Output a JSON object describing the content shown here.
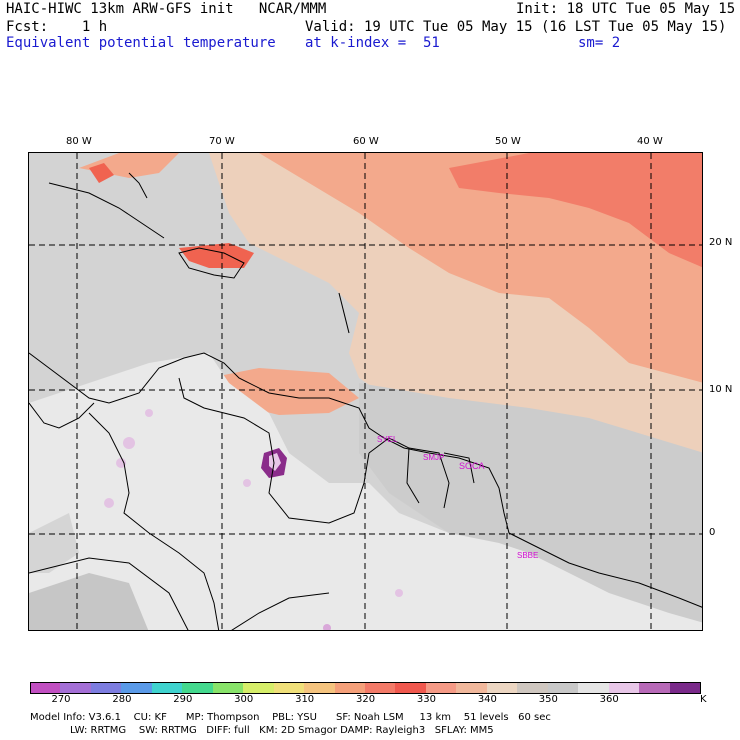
{
  "header": {
    "line1_left": "HAIC-HIWC 13km ARW-GFS init   NCAR/MMM",
    "line1_right": "Init: 18 UTC Tue 05 May 15",
    "line2_left": "Fcst:    1 h",
    "line2_right": "Valid: 19 UTC Tue 05 May 15 (16 LST Tue 05 May 15)",
    "line3_field": "Equivalent potential temperature",
    "line3_level": "at k-index =  51",
    "line3_sm": "sm= 2"
  },
  "axes": {
    "lon_labels": [
      "80 W",
      "70 W",
      "60 W",
      "50 W",
      "40 W"
    ],
    "lat_labels": [
      "20 N",
      "10 N",
      "0"
    ]
  },
  "stations": [
    "SMJP",
    "SOCA",
    "SBBE"
  ],
  "colorbar": {
    "unit": "K",
    "labels": [
      "270",
      "280",
      "290",
      "300",
      "310",
      "320",
      "330",
      "340",
      "350",
      "360"
    ],
    "colors": [
      "#c14fc1",
      "#a46fd6",
      "#7d7de0",
      "#5a9ae8",
      "#3fd3cf",
      "#44d98e",
      "#88e36a",
      "#d6ee6a",
      "#f0e07a",
      "#f5c47f",
      "#f5a07a",
      "#f37a68",
      "#f0584e",
      "#f59a86",
      "#f1b89c",
      "#ecd6c2",
      "#cfc7c0",
      "#c8c8c8",
      "#e5e5e5",
      "#e8c7e8",
      "#b86ab8",
      "#7a2a8a"
    ]
  },
  "footer": {
    "line1": "Model Info: V3.6.1    CU: KF      MP: Thompson    PBL: YSU      SF: Noah LSM     13 km    51 levels   60 sec",
    "line2": "LW: RRTMG    SW: RRTMG   DIFF: full   KM: 2D Smagor DAMP: Rayleigh3   SFLAY: MM5"
  },
  "palette": {
    "salmon_high": "#f37a68",
    "salmon": "#f5a58a",
    "peach": "#efd2bd",
    "grey": "#cfcfcf",
    "light": "#ececec",
    "purple": "#9b3b9b"
  }
}
